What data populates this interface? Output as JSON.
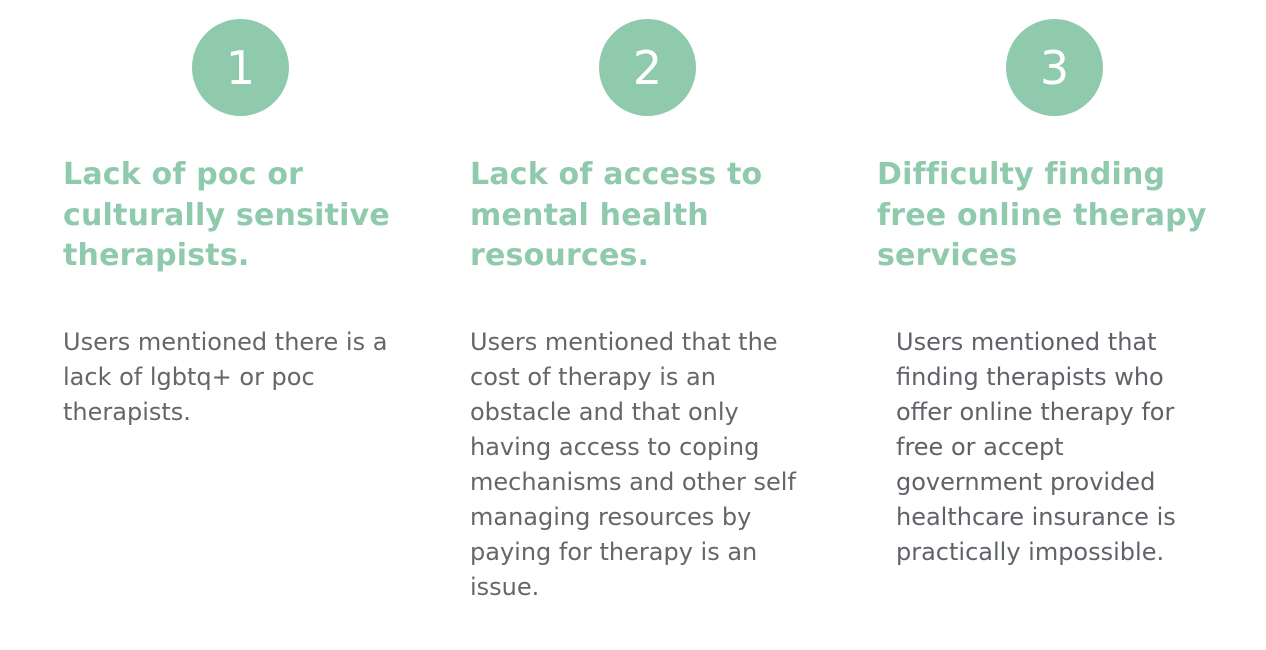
{
  "colors": {
    "accent": "#8fcaad",
    "body_text": "#666666",
    "badge_text": "#ffffff"
  },
  "cards": [
    {
      "number": "1",
      "title": "Lack of poc or culturally sensitive therapists.",
      "description": "Users mentioned there is a lack of lgbtq+ or poc therapists."
    },
    {
      "number": "2",
      "title": "Lack of access to mental health resources.",
      "description": "Users mentioned that the cost of therapy is an obstacle and that only having access to coping mechanisms and other self managing resources by paying for therapy is an issue."
    },
    {
      "number": "3",
      "title": "Difficulty finding free online therapy services",
      "description": "Users mentioned that finding therapists who offer online therapy for free or accept government provided healthcare insurance is practically impossible."
    }
  ]
}
